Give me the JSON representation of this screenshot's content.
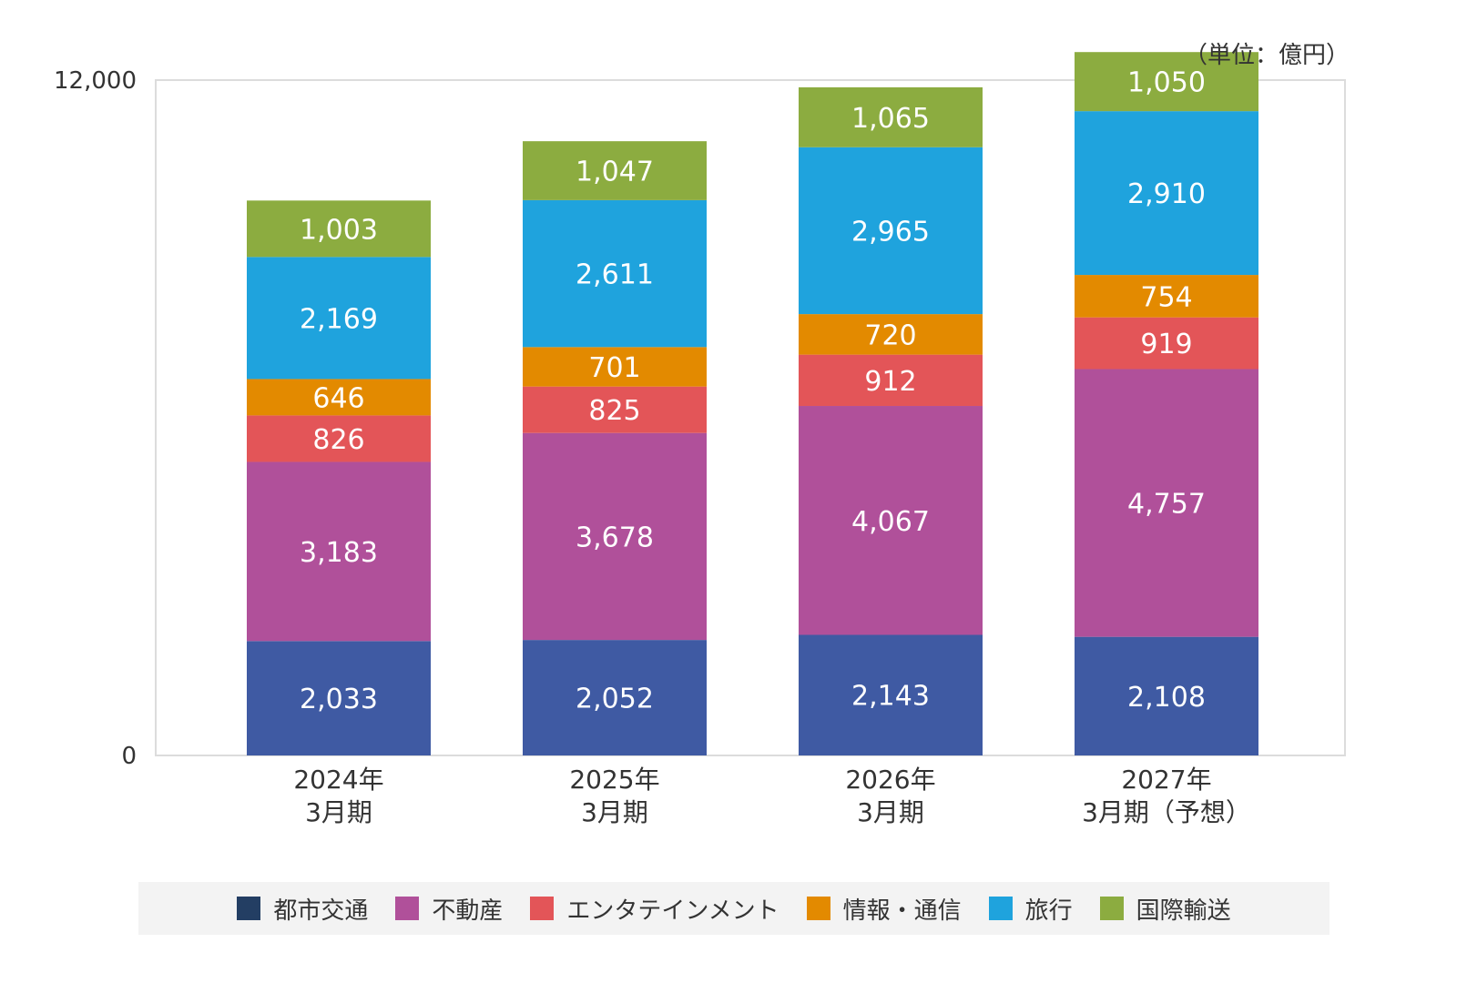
{
  "chart_data": {
    "type": "bar",
    "stacked": true,
    "unit_label": "（単位：億円）",
    "categories": [
      [
        "2024年",
        "3月期"
      ],
      [
        "2025年",
        "3月期"
      ],
      [
        "2026年",
        "3月期"
      ],
      [
        "2027年",
        "3月期（予想）"
      ]
    ],
    "series": [
      {
        "name": "都市交通",
        "color": "#3f5aa3",
        "values": [
          2033,
          2052,
          2143,
          2108
        ]
      },
      {
        "name": "不動産",
        "color": "#b0509a",
        "values": [
          3183,
          3678,
          4067,
          4757
        ]
      },
      {
        "name": "エンタテインメント",
        "color": "#e35558",
        "values": [
          826,
          825,
          912,
          919
        ]
      },
      {
        "name": "情報・通信",
        "color": "#e38a00",
        "values": [
          646,
          701,
          720,
          754
        ]
      },
      {
        "name": "旅行",
        "color": "#1fa3dd",
        "values": [
          2169,
          2611,
          2965,
          2910
        ]
      },
      {
        "name": "国際輸送",
        "color": "#8cac40",
        "values": [
          1003,
          1047,
          1065,
          1050
        ]
      }
    ],
    "y_ticks": [
      "0",
      "12,000"
    ],
    "ylim": [
      0,
      12000
    ],
    "grid": false,
    "legend_position": "bottom",
    "legend_swatch_colors": [
      "#233e63",
      "#b0509a",
      "#e35558",
      "#e38a00",
      "#1fa3dd",
      "#8cac40"
    ]
  }
}
